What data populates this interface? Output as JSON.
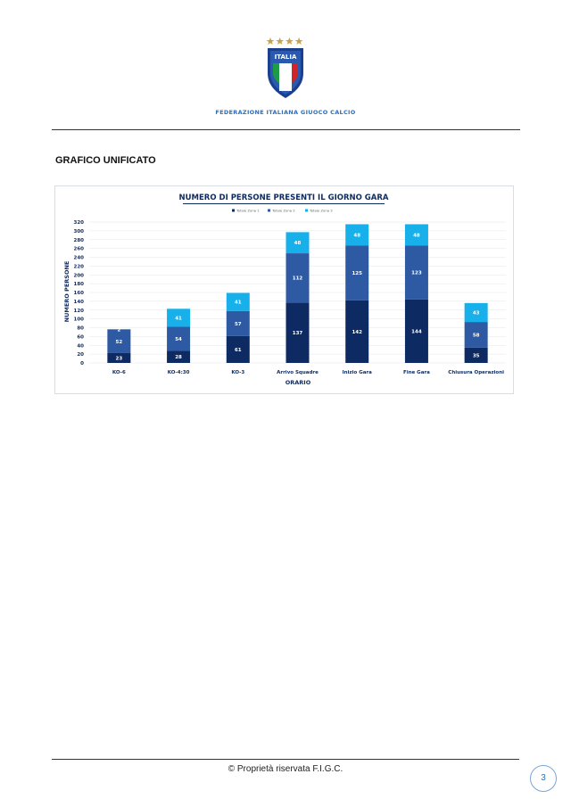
{
  "header": {
    "logo_text": "ITALIA",
    "federation": "FEDERAZIONE ITALIANA GIUOCO CALCIO"
  },
  "section_title": "GRAFICO UNIFICATO",
  "chart_data": {
    "type": "bar",
    "stacked": true,
    "title": "NUMERO DI PERSONE PRESENTI IL GIORNO GARA",
    "xlabel": "ORARIO",
    "ylabel": "NUMERO PERSONE",
    "ylim": [
      0,
      320
    ],
    "yticks": [
      0,
      20,
      40,
      60,
      80,
      100,
      120,
      140,
      160,
      180,
      200,
      220,
      240,
      260,
      280,
      300,
      320
    ],
    "grid": true,
    "legend_position": "top",
    "categories": [
      "KO-6",
      "KO-4:30",
      "KO-3",
      "Arrivo Squadre",
      "Inizio Gara",
      "Fine Gara",
      "Chiusura Operazioni"
    ],
    "series": [
      {
        "name": "Totale Zona 1",
        "color": "#0d2a63",
        "values": [
          23,
          28,
          61,
          137,
          142,
          144,
          35
        ]
      },
      {
        "name": "Totale Zona 2",
        "color": "#2d5aa3",
        "values": [
          52,
          54,
          57,
          112,
          125,
          123,
          58
        ]
      },
      {
        "name": "Totale Zona 3",
        "color": "#17b0ea",
        "values": [
          2,
          41,
          41,
          48,
          48,
          48,
          43
        ]
      }
    ]
  },
  "footer": {
    "copyright": "© Proprietà riservata F.I.G.C.",
    "page_number": "3"
  },
  "colors": {
    "title_navy": "#0f2b5e",
    "federation_blue": "#2f6fb8",
    "gold": "#c5a44e",
    "flag_green": "#1f9a45",
    "flag_red": "#d2232a"
  }
}
